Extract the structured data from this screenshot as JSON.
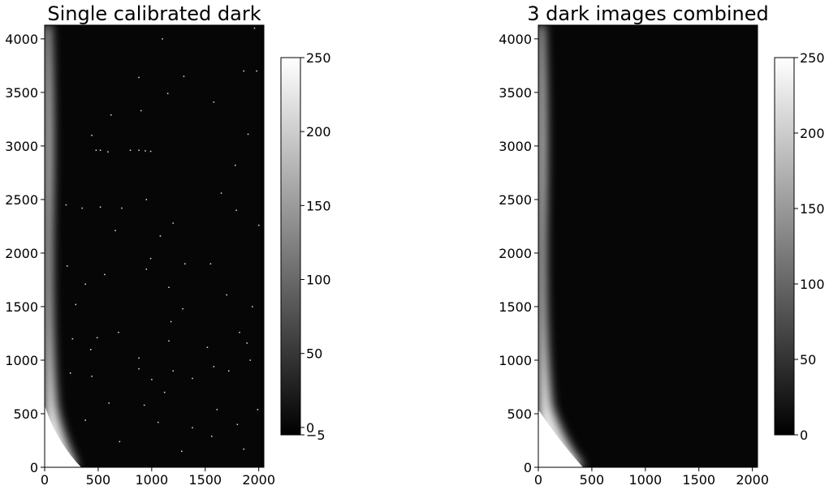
{
  "chart_data": [
    {
      "type": "heatmap",
      "title": "Single calibrated dark",
      "colormap": "gray",
      "image_shape": [
        4128,
        2048
      ],
      "xlim": [
        0,
        2048
      ],
      "ylim": [
        0,
        4128
      ],
      "x_ticks": [
        0,
        500,
        1000,
        1500,
        2000
      ],
      "y_ticks": [
        0,
        500,
        1000,
        1500,
        2000,
        2500,
        3000,
        3500,
        4000
      ],
      "colorbar": {
        "range": [
          -5,
          250
        ],
        "ticks": [
          0,
          50,
          100,
          150,
          200,
          250
        ],
        "tick_labels": [
          "0",
          "50",
          "100",
          "150",
          "200",
          "250"
        ],
        "extra_tick": {
          "value": -5,
          "label": "−5"
        }
      },
      "has_hot_pixels": true
    },
    {
      "type": "heatmap",
      "title": "3 dark images combined",
      "colormap": "gray",
      "image_shape": [
        4128,
        2048
      ],
      "xlim": [
        0,
        2048
      ],
      "ylim": [
        0,
        4128
      ],
      "x_ticks": [
        0,
        500,
        1000,
        1500,
        2000
      ],
      "y_ticks": [
        0,
        500,
        1000,
        1500,
        2000,
        2500,
        3000,
        3500,
        4000
      ],
      "colorbar": {
        "range": [
          0,
          250
        ],
        "ticks": [
          0,
          50,
          100,
          150,
          200,
          250
        ],
        "tick_labels": [
          "0",
          "50",
          "100",
          "150",
          "200",
          "250"
        ]
      },
      "has_hot_pixels": false
    }
  ],
  "hot_pixels": [
    [
      480,
      2960
    ],
    [
      520,
      2960
    ],
    [
      590,
      2945
    ],
    [
      800,
      2960
    ],
    [
      880,
      2960
    ],
    [
      940,
      2955
    ],
    [
      990,
      2950
    ],
    [
      880,
      3640
    ],
    [
      1300,
      3650
    ],
    [
      1150,
      3490
    ],
    [
      440,
      3100
    ],
    [
      620,
      3290
    ],
    [
      900,
      3330
    ],
    [
      1580,
      3410
    ],
    [
      1780,
      2820
    ],
    [
      1900,
      3110
    ],
    [
      1860,
      3700
    ],
    [
      1980,
      3700
    ],
    [
      1960,
      4100
    ],
    [
      1100,
      4000
    ],
    [
      2000,
      2260
    ],
    [
      520,
      2430
    ],
    [
      720,
      2420
    ],
    [
      950,
      2500
    ],
    [
      1080,
      2160
    ],
    [
      990,
      1950
    ],
    [
      660,
      2210
    ],
    [
      350,
      2420
    ],
    [
      200,
      2450
    ],
    [
      1200,
      2280
    ],
    [
      1650,
      2560
    ],
    [
      1790,
      2400
    ],
    [
      560,
      1800
    ],
    [
      950,
      1850
    ],
    [
      1160,
      1680
    ],
    [
      1550,
      1900
    ],
    [
      1940,
      1500
    ],
    [
      1290,
      1480
    ],
    [
      1180,
      1360
    ],
    [
      1160,
      1180
    ],
    [
      880,
      1020
    ],
    [
      880,
      920
    ],
    [
      690,
      1260
    ],
    [
      490,
      1210
    ],
    [
      430,
      1100
    ],
    [
      290,
      1520
    ],
    [
      440,
      850
    ],
    [
      1000,
      820
    ],
    [
      1380,
      830
    ],
    [
      1820,
      1260
    ],
    [
      1920,
      1000
    ],
    [
      1890,
      1160
    ],
    [
      1720,
      900
    ],
    [
      1580,
      940
    ],
    [
      1520,
      1120
    ],
    [
      1200,
      900
    ],
    [
      930,
      580
    ],
    [
      600,
      600
    ],
    [
      1120,
      700
    ],
    [
      1610,
      540
    ],
    [
      1990,
      540
    ],
    [
      1380,
      370
    ],
    [
      1060,
      420
    ],
    [
      380,
      440
    ],
    [
      1800,
      400
    ],
    [
      1560,
      290
    ],
    [
      1280,
      150
    ],
    [
      1860,
      170
    ],
    [
      700,
      240
    ],
    [
      240,
      880
    ],
    [
      1310,
      1900
    ],
    [
      1700,
      1610
    ],
    [
      260,
      1200
    ],
    [
      380,
      1710
    ],
    [
      210,
      1880
    ]
  ]
}
